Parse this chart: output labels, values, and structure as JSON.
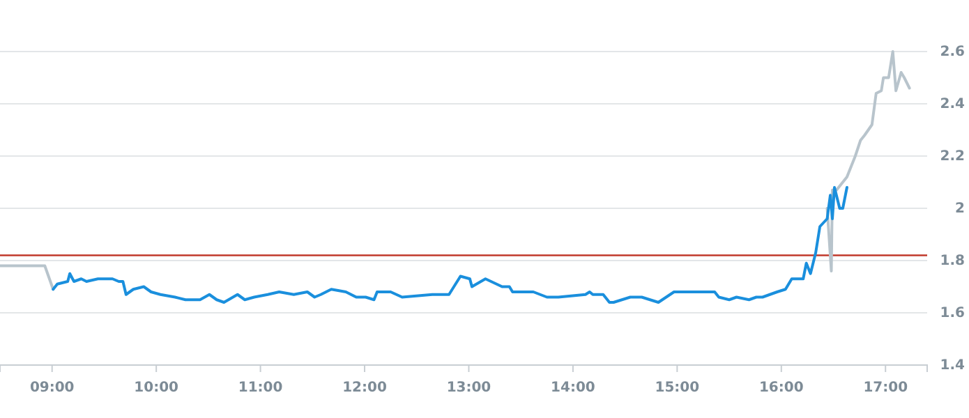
{
  "chart_data": {
    "type": "line",
    "xlim": [
      8.5,
      17.4
    ],
    "ylim": [
      1.4,
      2.6
    ],
    "xticks": [
      {
        "value": 9,
        "label": "09:00"
      },
      {
        "value": 10,
        "label": "10:00"
      },
      {
        "value": 11,
        "label": "11:00"
      },
      {
        "value": 12,
        "label": "12:00"
      },
      {
        "value": 13,
        "label": "13:00"
      },
      {
        "value": 14,
        "label": "14:00"
      },
      {
        "value": 15,
        "label": "15:00"
      },
      {
        "value": 16,
        "label": "16:00"
      },
      {
        "value": 17,
        "label": "17:00"
      }
    ],
    "yticks": [
      1.4,
      1.6,
      1.8,
      2,
      2.2,
      2.4,
      2.6
    ],
    "grid": "y",
    "marker": "none",
    "line_style": "solid",
    "ref_lines": [
      {
        "axis": "y",
        "value": 1.82,
        "color": "#c0392b"
      }
    ],
    "series": [
      {
        "color": "#b8c4cc",
        "x": [
          8.5,
          8.93,
          9.01,
          12,
          16.44,
          16.48,
          16.49,
          16.53,
          16.63,
          16.71,
          16.76,
          16.8,
          16.87,
          16.91,
          16.96,
          16.98,
          17.03,
          17.07,
          17.1,
          17.15,
          17.18,
          17.23
        ],
        "values": [
          1.78,
          1.78,
          1.69,
          null,
          2.0,
          1.76,
          2.07,
          2.07,
          2.12,
          2.2,
          2.26,
          2.28,
          2.32,
          2.44,
          2.45,
          2.5,
          2.5,
          2.6,
          2.45,
          2.52,
          2.5,
          2.46
        ]
      },
      {
        "color": "#1a8fdd",
        "x": [
          9.01,
          9.05,
          9.15,
          9.17,
          9.21,
          9.28,
          9.33,
          9.44,
          9.58,
          9.64,
          9.68,
          9.71,
          9.78,
          9.88,
          9.95,
          10.04,
          10.18,
          10.28,
          10.42,
          10.51,
          10.58,
          10.65,
          10.78,
          10.85,
          10.94,
          11.07,
          11.18,
          11.32,
          11.45,
          11.52,
          11.58,
          11.68,
          11.82,
          11.92,
          12.01,
          12.09,
          12.12,
          12.25,
          12.36,
          12.65,
          12.81,
          12.92,
          13.01,
          13.03,
          13.16,
          13.32,
          13.39,
          13.42,
          13.5,
          13.62,
          13.75,
          13.86,
          14.12,
          14.16,
          14.19,
          14.29,
          14.35,
          14.39,
          14.55,
          14.66,
          14.82,
          14.97,
          15.36,
          15.4,
          15.5,
          15.57,
          15.69,
          15.76,
          15.82,
          15.96,
          16.04,
          16.1,
          16.16,
          16.21,
          16.24,
          16.28,
          16.33,
          16.37,
          16.44,
          16.47,
          16.49,
          16.51,
          16.56,
          16.59,
          16.63
        ],
        "values": [
          1.69,
          1.71,
          1.72,
          1.75,
          1.72,
          1.73,
          1.72,
          1.73,
          1.73,
          1.72,
          1.72,
          1.67,
          1.69,
          1.7,
          1.68,
          1.67,
          1.66,
          1.65,
          1.65,
          1.67,
          1.65,
          1.64,
          1.67,
          1.65,
          1.66,
          1.67,
          1.68,
          1.67,
          1.68,
          1.66,
          1.67,
          1.69,
          1.68,
          1.66,
          1.66,
          1.65,
          1.68,
          1.68,
          1.66,
          1.67,
          1.67,
          1.74,
          1.73,
          1.7,
          1.73,
          1.7,
          1.7,
          1.68,
          1.68,
          1.68,
          1.66,
          1.66,
          1.67,
          1.68,
          1.67,
          1.67,
          1.64,
          1.64,
          1.66,
          1.66,
          1.64,
          1.68,
          1.68,
          1.66,
          1.65,
          1.66,
          1.65,
          1.66,
          1.66,
          1.68,
          1.69,
          1.73,
          1.73,
          1.73,
          1.79,
          1.75,
          1.83,
          1.93,
          1.96,
          2.05,
          1.96,
          2.08,
          2.0,
          2.0,
          2.08
        ]
      }
    ]
  }
}
